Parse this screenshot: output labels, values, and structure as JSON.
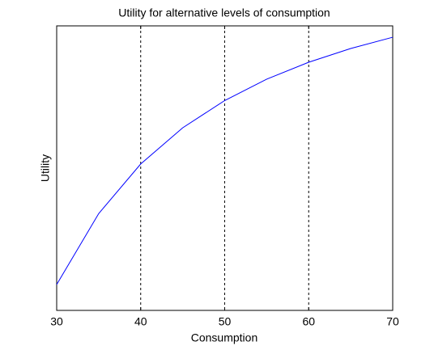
{
  "chart_data": {
    "type": "line",
    "title": "Utility for alternative levels of consumption",
    "x_label": "Consumption",
    "y_label": "Utility",
    "x": [
      30,
      35,
      40,
      45,
      50,
      55,
      60,
      65,
      70
    ],
    "series": [
      {
        "name": "Utility",
        "color": "#0000ff",
        "values": [
          -0.004057,
          -0.00322,
          -0.002635,
          -0.002208,
          -0.001886,
          -0.001634,
          -0.001434,
          -0.001272,
          -0.001139
        ]
      }
    ],
    "xlim": [
      30,
      70
    ],
    "xticks": [
      30,
      40,
      50,
      60,
      70
    ],
    "ylim": [
      -0.004362,
      -0.001005
    ],
    "grid": true
  }
}
